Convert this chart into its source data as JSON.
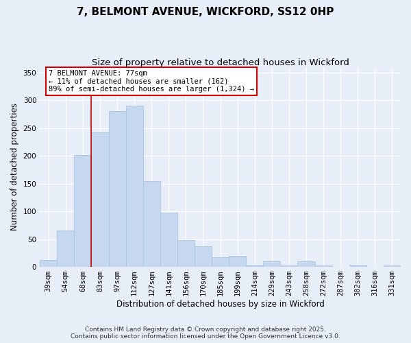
{
  "title_line1": "7, BELMONT AVENUE, WICKFORD, SS12 0HP",
  "title_line2": "Size of property relative to detached houses in Wickford",
  "xlabel": "Distribution of detached houses by size in Wickford",
  "ylabel": "Number of detached properties",
  "categories": [
    "39sqm",
    "54sqm",
    "68sqm",
    "83sqm",
    "97sqm",
    "112sqm",
    "127sqm",
    "141sqm",
    "156sqm",
    "170sqm",
    "185sqm",
    "199sqm",
    "214sqm",
    "229sqm",
    "243sqm",
    "258sqm",
    "272sqm",
    "287sqm",
    "302sqm",
    "316sqm",
    "331sqm"
  ],
  "values": [
    13,
    65,
    202,
    242,
    281,
    290,
    155,
    98,
    48,
    37,
    18,
    20,
    4,
    10,
    2,
    10,
    2,
    0,
    4,
    0,
    2
  ],
  "bar_color": "#c5d8f0",
  "bar_edge_color": "#a8c4e0",
  "vline_color": "#cc0000",
  "vline_pos": 2.5,
  "annotation_text": "7 BELMONT AVENUE: 77sqm\n← 11% of detached houses are smaller (162)\n89% of semi-detached houses are larger (1,324) →",
  "annotation_box_facecolor": "#ffffff",
  "annotation_box_edgecolor": "#cc0000",
  "ylim": [
    0,
    360
  ],
  "yticks": [
    0,
    50,
    100,
    150,
    200,
    250,
    300,
    350
  ],
  "background_color": "#e8eef8",
  "footer_text": "Contains HM Land Registry data © Crown copyright and database right 2025.\nContains public sector information licensed under the Open Government Licence v3.0.",
  "title_fontsize": 11,
  "subtitle_fontsize": 9.5,
  "axis_label_fontsize": 8.5,
  "tick_fontsize": 7.5,
  "annot_fontsize": 7.5,
  "footer_fontsize": 6.5
}
